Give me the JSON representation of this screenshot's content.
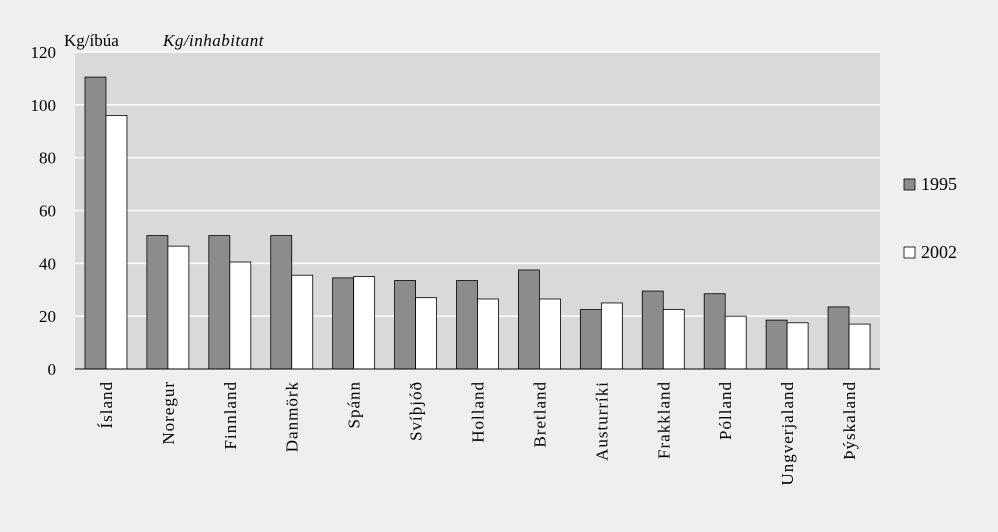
{
  "chart_data": {
    "type": "bar",
    "unit_label": "Kg/íbúa",
    "unit_label_en": "Kg/inhabitant",
    "categories": [
      "Ísland",
      "Noregur",
      "Finnland",
      "Danmörk",
      "Spánn",
      "Svíþjóð",
      "Holland",
      "Bretland",
      "Austurríki",
      "Frakkland",
      "Pólland",
      "Ungverjaland",
      "Þýskaland"
    ],
    "series": [
      {
        "name": "1995",
        "color": "#8c8c8c",
        "values": [
          110.5,
          50.5,
          50.5,
          50.5,
          34.5,
          33.5,
          33.5,
          37.5,
          22.5,
          29.5,
          28.5,
          18.5,
          23.5
        ]
      },
      {
        "name": "2002",
        "color": "#ffffff",
        "values": [
          96,
          46.5,
          40.5,
          35.5,
          35,
          27,
          26.5,
          26.5,
          25,
          22.5,
          20,
          17.5,
          17
        ]
      }
    ],
    "yticks": [
      "0",
      "20",
      "40",
      "60",
      "80",
      "100",
      "120"
    ],
    "ylim": [
      0,
      120
    ],
    "grid": true,
    "legend_position": "right",
    "plot_background": "#d9d9d9"
  }
}
